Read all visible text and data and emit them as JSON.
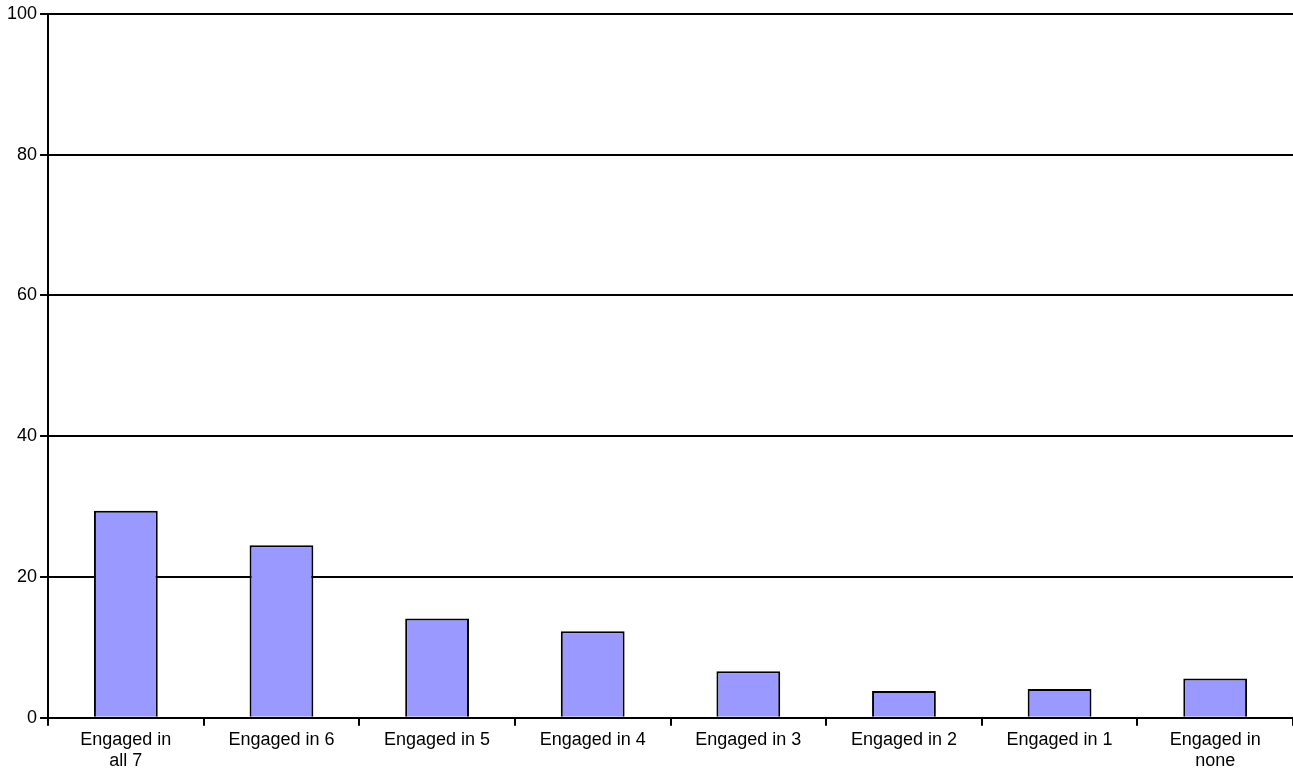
{
  "chart_data": {
    "type": "bar",
    "categories": [
      "Engaged in all 7",
      "Engaged in 6",
      "Engaged in 5",
      "Engaged in 4",
      "Engaged in 3",
      "Engaged in 2",
      "Engaged in 1",
      "Engaged in none"
    ],
    "values": [
      29.4,
      24.5,
      14.1,
      12.3,
      6.6,
      3.8,
      4.1,
      5.6
    ],
    "color": "#9999ff",
    "ylim": [
      0,
      100
    ],
    "yticks": [
      0,
      20,
      40,
      60,
      80,
      100
    ],
    "grid": "y",
    "legend": false
  }
}
